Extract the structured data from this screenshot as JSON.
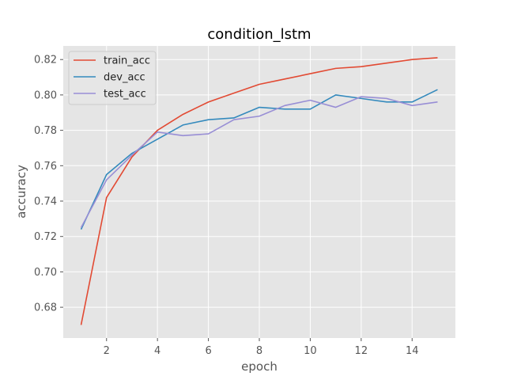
{
  "chart_data": {
    "type": "line",
    "title": "condition_lstm",
    "xlabel": "epoch",
    "ylabel": "accuracy",
    "xlim": [
      0.3,
      15.7
    ],
    "ylim": [
      0.6626,
      0.8277
    ],
    "xticks": [
      2,
      4,
      6,
      8,
      10,
      12,
      14
    ],
    "yticks": [
      0.68,
      0.7,
      0.72,
      0.74,
      0.76,
      0.78,
      0.8,
      0.82
    ],
    "xtick_labels": [
      "2",
      "4",
      "6",
      "8",
      "10",
      "12",
      "14"
    ],
    "ytick_labels": [
      "0.68",
      "0.70",
      "0.72",
      "0.74",
      "0.76",
      "0.78",
      "0.80",
      "0.82"
    ],
    "grid": true,
    "legend_position": "top-left",
    "x": [
      1,
      2,
      3,
      4,
      5,
      6,
      7,
      8,
      9,
      10,
      11,
      12,
      13,
      14,
      15
    ],
    "series": [
      {
        "name": "train_acc",
        "color": "#E24A33",
        "values": [
          0.67,
          0.742,
          0.765,
          0.78,
          0.789,
          0.796,
          0.801,
          0.806,
          0.809,
          0.812,
          0.815,
          0.816,
          0.818,
          0.82,
          0.821
        ]
      },
      {
        "name": "dev_acc",
        "color": "#348ABD",
        "values": [
          0.724,
          0.755,
          0.767,
          0.775,
          0.783,
          0.786,
          0.787,
          0.793,
          0.792,
          0.792,
          0.8,
          0.798,
          0.796,
          0.796,
          0.803
        ]
      },
      {
        "name": "test_acc",
        "color": "#988ED5",
        "values": [
          0.725,
          0.752,
          0.766,
          0.779,
          0.777,
          0.778,
          0.786,
          0.788,
          0.794,
          0.797,
          0.793,
          0.799,
          0.798,
          0.794,
          0.796
        ]
      }
    ]
  }
}
